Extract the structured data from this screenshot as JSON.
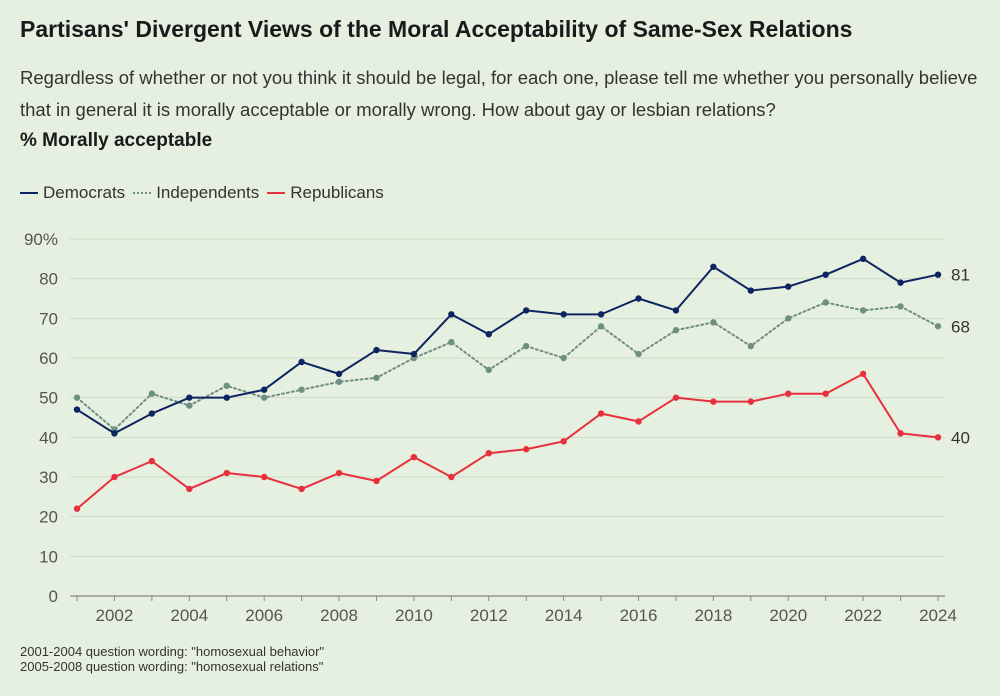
{
  "header": {
    "title": "Partisans' Divergent Views of the Moral Acceptability of Same-Sex Relations",
    "subtitle": "Regardless of whether or not you think it should be legal, for each one, please tell me whether you personally believe that in general it is morally acceptable or morally wrong. How about gay or lesbian relations?",
    "measure": "% Morally acceptable"
  },
  "footnotes": [
    "2001-2004 question wording: \"homosexual behavior\"",
    "2005-2008 question wording: \"homosexual relations\""
  ],
  "colors": {
    "background": "#e6f0e0",
    "democrats": "#0d2461",
    "independents": "#6f8f81",
    "republicans": "#e8303d",
    "grid": "#cfdcc9",
    "axis": "#888888"
  },
  "chart_data": {
    "type": "line",
    "title": "Partisans' Divergent Views of the Moral Acceptability of Same-Sex Relations",
    "ylabel": "% Morally acceptable",
    "xlabel": "",
    "x": [
      2001,
      2002,
      2003,
      2004,
      2005,
      2006,
      2007,
      2008,
      2009,
      2010,
      2011,
      2012,
      2013,
      2014,
      2015,
      2016,
      2017,
      2018,
      2019,
      2020,
      2021,
      2022,
      2023,
      2024
    ],
    "xlim": [
      2001,
      2024
    ],
    "x_ticks": [
      2002,
      2004,
      2006,
      2008,
      2010,
      2012,
      2014,
      2016,
      2018,
      2020,
      2022,
      2024
    ],
    "ylim": [
      0,
      90
    ],
    "y_ticks": [
      0,
      10,
      20,
      30,
      40,
      50,
      60,
      70,
      80,
      90
    ],
    "y_tick_labels": [
      "0",
      "10",
      "20",
      "30",
      "40",
      "50",
      "60",
      "70",
      "80",
      "90%"
    ],
    "grid": true,
    "legend_position": "top-left",
    "series": [
      {
        "name": "Democrats",
        "style": "solid",
        "values": [
          47,
          41,
          46,
          50,
          50,
          52,
          59,
          56,
          62,
          61,
          71,
          66,
          72,
          71,
          71,
          75,
          72,
          83,
          77,
          78,
          81,
          85,
          79,
          81
        ],
        "end_label": "81"
      },
      {
        "name": "Independents",
        "style": "dotted",
        "values": [
          50,
          42,
          51,
          48,
          53,
          50,
          52,
          54,
          55,
          60,
          64,
          57,
          63,
          60,
          68,
          61,
          67,
          69,
          63,
          70,
          74,
          72,
          73,
          68
        ],
        "end_label": "68"
      },
      {
        "name": "Republicans",
        "style": "solid",
        "values": [
          22,
          30,
          34,
          27,
          31,
          30,
          27,
          31,
          29,
          35,
          30,
          36,
          37,
          39,
          46,
          44,
          50,
          49,
          49,
          51,
          51,
          56,
          41,
          40
        ],
        "end_label": "40"
      }
    ]
  }
}
